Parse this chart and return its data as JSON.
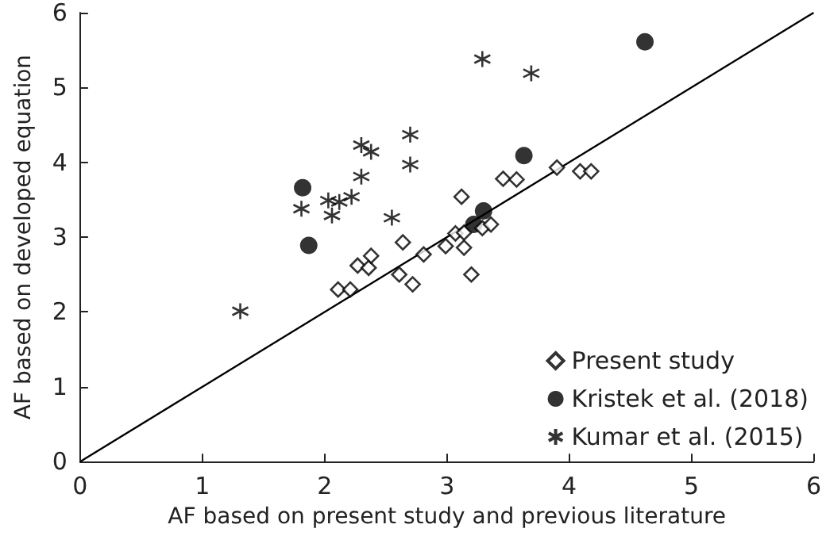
{
  "chart_data": {
    "type": "scatter",
    "xlabel": "AF based on present study and previous literature",
    "ylabel": "AF based on developed equation",
    "xlim": [
      0,
      6
    ],
    "ylim": [
      0,
      6
    ],
    "xticks": [
      0,
      1,
      2,
      3,
      4,
      5,
      6
    ],
    "yticks": [
      0,
      1,
      2,
      3,
      4,
      5,
      6
    ],
    "grid": false,
    "legend": "bottom right",
    "series": [
      {
        "name": "Present study",
        "color": "#000000",
        "marker": "diamond",
        "x": [
          2.11,
          2.21,
          2.27,
          2.36,
          2.38,
          2.61,
          2.64,
          2.72,
          2.81,
          2.99,
          3.07,
          3.14,
          3.14,
          3.12,
          3.2,
          3.29,
          3.36,
          3.46,
          3.57,
          3.9,
          4.09,
          4.18
        ],
        "values": [
          2.3,
          2.3,
          2.62,
          2.59,
          2.75,
          2.5,
          2.93,
          2.37,
          2.77,
          2.88,
          3.05,
          3.06,
          2.86,
          3.54,
          2.5,
          3.12,
          3.17,
          3.78,
          3.77,
          3.93,
          3.88,
          3.88
        ]
      },
      {
        "name": "Kristek et al. (2018)",
        "color": "#000000",
        "marker": "circle",
        "x": [
          1.82,
          1.87,
          3.22,
          3.3,
          3.63,
          4.62
        ],
        "values": [
          3.66,
          2.89,
          3.17,
          3.35,
          4.09,
          5.61
        ]
      },
      {
        "name": "Kumar et al. (2015)",
        "color": "#000000",
        "marker": "cross",
        "x": [
          1.31,
          1.81,
          2.03,
          2.06,
          2.12,
          2.22,
          2.3,
          2.38,
          2.3,
          2.55,
          2.7,
          2.7,
          3.29,
          3.69
        ],
        "values": [
          2.01,
          3.38,
          3.49,
          3.29,
          3.47,
          3.54,
          4.23,
          4.14,
          3.81,
          3.26,
          4.37,
          3.97,
          5.38,
          5.19
        ]
      },
      {
        "type": "line",
        "color": "#000000",
        "marker": "none",
        "x": [
          0,
          6
        ],
        "values": [
          0,
          6
        ]
      }
    ]
  }
}
